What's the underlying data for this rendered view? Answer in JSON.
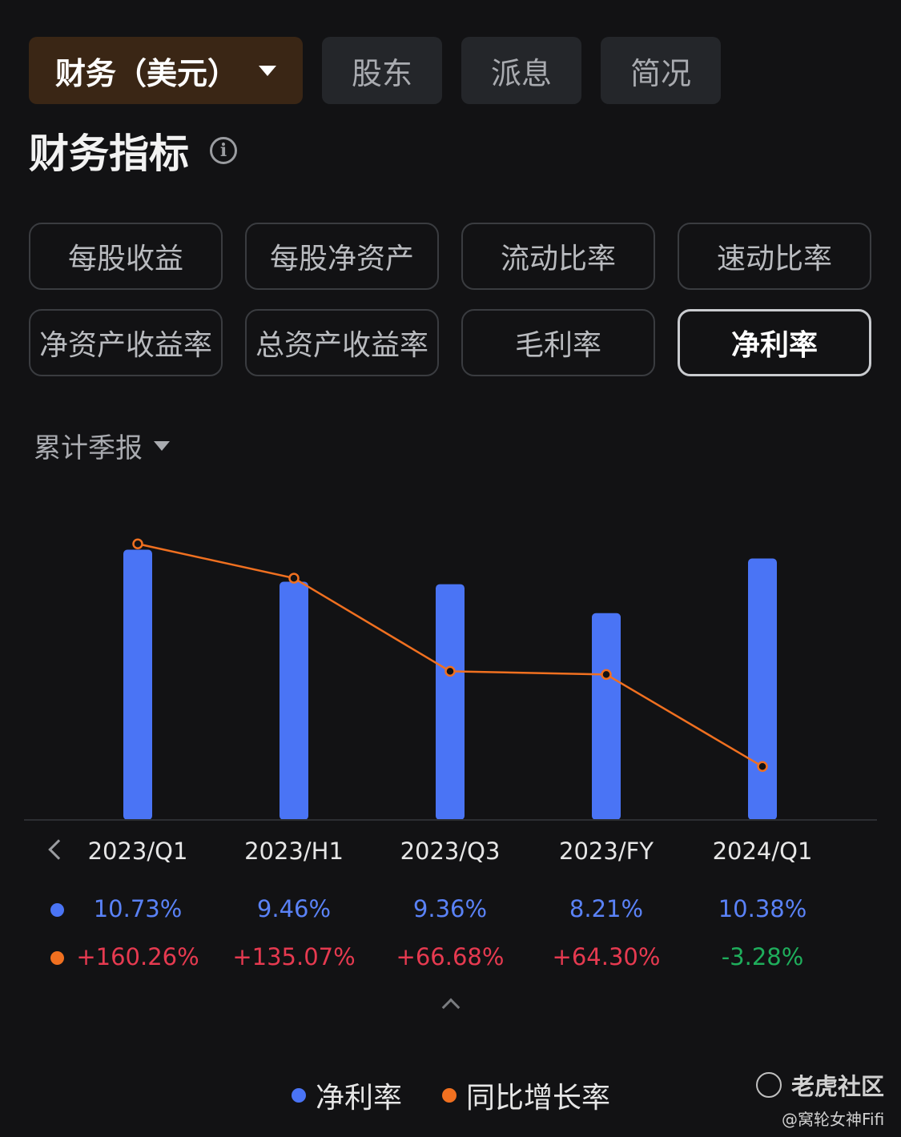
{
  "tabs": [
    {
      "label": "财务（美元）",
      "active": true
    },
    {
      "label": "股东",
      "active": false
    },
    {
      "label": "派息",
      "active": false
    },
    {
      "label": "简况",
      "active": false
    }
  ],
  "section_title": "财务指标",
  "metrics": [
    "每股收益",
    "每股净资产",
    "流动比率",
    "速动比率",
    "净资产收益率",
    "总资产收益率",
    "毛利率",
    "净利率"
  ],
  "selected_metric": "净利率",
  "period_selector": "累计季报",
  "colors": {
    "bar": "#4a74f5",
    "line": "#f07020",
    "positive": "#e63a50",
    "negative": "#1fae5c",
    "blue_text": "#5a82f7"
  },
  "chart_data": {
    "type": "bar",
    "categories": [
      "2023/Q1",
      "2023/H1",
      "2023/Q3",
      "2023/FY",
      "2024/Q1"
    ],
    "series": [
      {
        "name": "净利率",
        "type": "bar",
        "values": [
          10.73,
          9.46,
          9.36,
          8.21,
          10.38
        ],
        "labels": [
          "10.73%",
          "9.46%",
          "9.36%",
          "8.21%",
          "10.38%"
        ]
      },
      {
        "name": "同比增长率",
        "type": "line",
        "values": [
          160.26,
          135.07,
          66.68,
          64.3,
          -3.28
        ],
        "labels": [
          "+160.26%",
          "+135.07%",
          "+66.68%",
          "+64.30%",
          "-3.28%"
        ]
      }
    ],
    "legend": [
      "净利率",
      "同比增长率"
    ],
    "legend_position": "bottom",
    "grid": false
  },
  "watermark": {
    "brand": "老虎社区",
    "user": "@窝轮女神Fifi"
  }
}
